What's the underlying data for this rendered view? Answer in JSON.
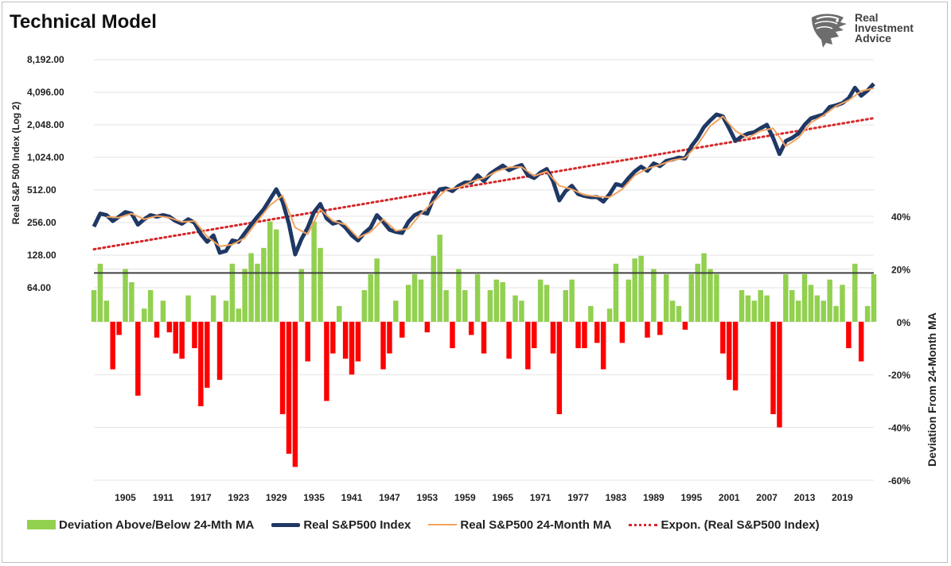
{
  "title": "Technical Model",
  "logo": {
    "line1": "Real",
    "line2": "Investment",
    "line3": "Advice",
    "icon": "eagle-head-icon"
  },
  "legend": [
    {
      "label": "Deviation Above/Below 24-Mth MA",
      "color": "#92d050"
    },
    {
      "label": "Real S&P500 Index",
      "color": "#1f3864"
    },
    {
      "label": "Real S&P500 24-Month MA",
      "color": "#f4a460"
    },
    {
      "label": "Expon. (Real S&P500 Index)",
      "color": "#d62728"
    }
  ],
  "chart_data": {
    "type": "combo",
    "title": "Technical Model",
    "x_range": [
      1900,
      2024
    ],
    "x_ticks": [
      "1905",
      "1911",
      "1917",
      "1923",
      "1929",
      "1935",
      "1941",
      "1947",
      "1953",
      "1959",
      "1965",
      "1971",
      "1977",
      "1983",
      "1989",
      "1995",
      "2001",
      "2007",
      "2013",
      "2019"
    ],
    "left_axis": {
      "label": "Real S&P 500 Index (Log 2)",
      "scale": "log2",
      "range": [
        64,
        8192
      ],
      "ticks": [
        "64.00",
        "128.00",
        "256.00",
        "512.00",
        "1,024.00",
        "2,048.00",
        "4,096.00",
        "8,192.00"
      ],
      "tick_values": [
        64,
        128,
        256,
        512,
        1024,
        2048,
        4096,
        8192
      ]
    },
    "right_axis": {
      "label": "Deviation From 24-Month MA",
      "range": [
        -0.6,
        0.4
      ],
      "ticks": [
        "-60%",
        "-40%",
        "-20%",
        "0%",
        "20%",
        "40%"
      ],
      "tick_values": [
        -0.6,
        -0.4,
        -0.2,
        0,
        0.2,
        0.4
      ]
    },
    "reference_line": {
      "value": 0.185,
      "color": "#404040"
    },
    "series": [
      {
        "name": "Real S&P500 Index",
        "type": "line",
        "color": "#1f3864",
        "x": [
          1900,
          1901,
          1902,
          1903,
          1904,
          1905,
          1906,
          1907,
          1908,
          1909,
          1910,
          1911,
          1912,
          1913,
          1914,
          1915,
          1916,
          1917,
          1918,
          1919,
          1920,
          1921,
          1922,
          1923,
          1924,
          1925,
          1926,
          1927,
          1928,
          1929,
          1930,
          1931,
          1932,
          1933,
          1934,
          1935,
          1936,
          1937,
          1938,
          1939,
          1940,
          1941,
          1942,
          1943,
          1944,
          1945,
          1946,
          1947,
          1948,
          1949,
          1950,
          1951,
          1952,
          1953,
          1954,
          1955,
          1956,
          1957,
          1958,
          1959,
          1960,
          1961,
          1962,
          1963,
          1964,
          1965,
          1966,
          1967,
          1968,
          1969,
          1970,
          1971,
          1972,
          1973,
          1974,
          1975,
          1976,
          1977,
          1978,
          1979,
          1980,
          1981,
          1982,
          1983,
          1984,
          1985,
          1986,
          1987,
          1988,
          1989,
          1990,
          1991,
          1992,
          1993,
          1994,
          1995,
          1996,
          1997,
          1998,
          1999,
          2000,
          2001,
          2002,
          2003,
          2004,
          2005,
          2006,
          2007,
          2008,
          2009,
          2010,
          2011,
          2012,
          2013,
          2014,
          2015,
          2016,
          2017,
          2018,
          2019,
          2020,
          2021,
          2022,
          2023,
          2024
        ],
        "y": [
          235,
          310,
          300,
          265,
          290,
          320,
          310,
          245,
          275,
          300,
          290,
          300,
          290,
          265,
          250,
          275,
          255,
          200,
          170,
          195,
          135,
          140,
          175,
          170,
          205,
          245,
          290,
          340,
          420,
          520,
          400,
          250,
          130,
          180,
          230,
          320,
          380,
          280,
          250,
          260,
          230,
          195,
          175,
          205,
          230,
          300,
          260,
          220,
          210,
          205,
          260,
          300,
          320,
          310,
          430,
          520,
          530,
          500,
          560,
          600,
          600,
          700,
          620,
          720,
          790,
          860,
          780,
          830,
          870,
          700,
          660,
          740,
          800,
          620,
          410,
          500,
          560,
          470,
          450,
          440,
          440,
          400,
          470,
          580,
          560,
          660,
          760,
          840,
          770,
          900,
          850,
          950,
          980,
          1020,
          1000,
          1300,
          1550,
          1950,
          2250,
          2550,
          2450,
          1900,
          1450,
          1600,
          1700,
          1750,
          1900,
          2050,
          1550,
          1100,
          1450,
          1550,
          1700,
          2050,
          2350,
          2450,
          2550,
          3000,
          3100,
          3250,
          3600,
          4500,
          3800,
          4250,
          4900
        ]
      },
      {
        "name": "Real S&P500 24-Month MA",
        "type": "line",
        "color": "#f4a460",
        "x": [
          1902,
          1904,
          1906,
          1908,
          1910,
          1912,
          1914,
          1916,
          1918,
          1920,
          1922,
          1924,
          1926,
          1928,
          1930,
          1932,
          1934,
          1936,
          1938,
          1940,
          1942,
          1944,
          1946,
          1948,
          1950,
          1952,
          1954,
          1956,
          1958,
          1960,
          1962,
          1964,
          1966,
          1968,
          1970,
          1972,
          1974,
          1976,
          1978,
          1980,
          1982,
          1984,
          1986,
          1988,
          1990,
          1992,
          1994,
          1996,
          1998,
          2000,
          2002,
          2004,
          2006,
          2008,
          2010,
          2012,
          2014,
          2016,
          2018,
          2020,
          2022,
          2024
        ],
        "y": [
          290,
          285,
          310,
          275,
          295,
          285,
          260,
          265,
          190,
          155,
          160,
          185,
          265,
          370,
          455,
          230,
          200,
          340,
          265,
          245,
          185,
          210,
          275,
          215,
          225,
          310,
          400,
          515,
          540,
          610,
          660,
          760,
          830,
          835,
          690,
          760,
          560,
          520,
          460,
          445,
          440,
          520,
          700,
          810,
          875,
          965,
          1010,
          1350,
          2000,
          2450,
          1800,
          1550,
          1800,
          1900,
          1300,
          1550,
          2150,
          2500,
          3050,
          3450,
          4200,
          4450
        ]
      },
      {
        "name": "Expon. (Real S&P500 Index)",
        "type": "line",
        "style": "dotted",
        "color": "#d62728",
        "x": [
          1900,
          2024
        ],
        "y": [
          145,
          2360
        ]
      },
      {
        "name": "Deviation Above/Below 24-Mth MA",
        "type": "bar",
        "color_positive": "#92d050",
        "color_negative": "#ff0000",
        "x": [
          1900,
          1901,
          1902,
          1903,
          1904,
          1905,
          1906,
          1907,
          1908,
          1909,
          1910,
          1911,
          1912,
          1913,
          1914,
          1915,
          1916,
          1917,
          1918,
          1919,
          1920,
          1921,
          1922,
          1923,
          1924,
          1925,
          1926,
          1927,
          1928,
          1929,
          1930,
          1931,
          1932,
          1933,
          1934,
          1935,
          1936,
          1937,
          1938,
          1939,
          1940,
          1941,
          1942,
          1943,
          1944,
          1945,
          1946,
          1947,
          1948,
          1949,
          1950,
          1951,
          1952,
          1953,
          1954,
          1955,
          1956,
          1957,
          1958,
          1959,
          1960,
          1961,
          1962,
          1963,
          1964,
          1965,
          1966,
          1967,
          1968,
          1969,
          1970,
          1971,
          1972,
          1973,
          1974,
          1975,
          1976,
          1977,
          1978,
          1979,
          1980,
          1981,
          1982,
          1983,
          1984,
          1985,
          1986,
          1987,
          1988,
          1989,
          1990,
          1991,
          1992,
          1993,
          1994,
          1995,
          1996,
          1997,
          1998,
          1999,
          2000,
          2001,
          2002,
          2003,
          2004,
          2005,
          2006,
          2007,
          2008,
          2009,
          2010,
          2011,
          2012,
          2013,
          2014,
          2015,
          2016,
          2017,
          2018,
          2019,
          2020,
          2021,
          2022,
          2023,
          2024
        ],
        "values": [
          0.12,
          0.22,
          0.08,
          -0.18,
          -0.05,
          0.2,
          0.15,
          -0.28,
          0.05,
          0.12,
          -0.06,
          0.08,
          -0.04,
          -0.12,
          -0.14,
          0.1,
          -0.1,
          -0.32,
          -0.25,
          0.1,
          -0.22,
          0.08,
          0.22,
          0.05,
          0.2,
          0.26,
          0.22,
          0.28,
          0.38,
          0.35,
          -0.35,
          -0.5,
          -0.55,
          0.2,
          -0.15,
          0.38,
          0.28,
          -0.3,
          -0.12,
          0.06,
          -0.14,
          -0.2,
          -0.15,
          0.12,
          0.18,
          0.24,
          -0.18,
          -0.12,
          0.08,
          -0.06,
          0.14,
          0.18,
          0.16,
          -0.04,
          0.25,
          0.33,
          0.12,
          -0.1,
          0.2,
          0.12,
          -0.05,
          0.18,
          -0.12,
          0.12,
          0.16,
          0.15,
          -0.14,
          0.1,
          0.08,
          -0.18,
          -0.1,
          0.16,
          0.14,
          -0.12,
          -0.35,
          0.12,
          0.16,
          -0.1,
          -0.1,
          0.06,
          -0.08,
          -0.18,
          0.05,
          0.22,
          -0.08,
          0.16,
          0.24,
          0.25,
          -0.06,
          0.2,
          -0.05,
          0.18,
          0.08,
          0.06,
          -0.03,
          0.18,
          0.22,
          0.26,
          0.2,
          0.18,
          -0.12,
          -0.22,
          -0.26,
          0.12,
          0.1,
          0.08,
          0.12,
          0.1,
          -0.35,
          -0.4,
          0.18,
          0.12,
          0.08,
          0.18,
          0.14,
          0.1,
          0.08,
          0.16,
          0.06,
          0.14,
          -0.1,
          0.22,
          -0.15,
          0.06,
          0.18
        ]
      }
    ],
    "grid": true,
    "legend_position": "bottom"
  }
}
